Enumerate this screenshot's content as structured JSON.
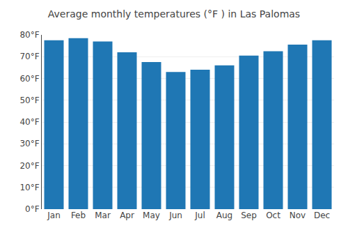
{
  "chart_data": {
    "type": "bar",
    "title": "Average monthly temperatures (°F ) in Las Palomas",
    "categories": [
      "Jan",
      "Feb",
      "Mar",
      "Apr",
      "May",
      "Jun",
      "Jul",
      "Aug",
      "Sep",
      "Oct",
      "Nov",
      "Dec"
    ],
    "values": [
      77.5,
      78.5,
      77.0,
      72.0,
      67.5,
      63.0,
      64.0,
      66.0,
      70.5,
      72.5,
      75.5,
      77.5
    ],
    "ylim": [
      0,
      80
    ],
    "yticks": [
      {
        "value": 0,
        "label": "0°F"
      },
      {
        "value": 10,
        "label": "10°F"
      },
      {
        "value": 20,
        "label": "20°F"
      },
      {
        "value": 30,
        "label": "30°F"
      },
      {
        "value": 40,
        "label": "40°F"
      },
      {
        "value": 50,
        "label": "50°F"
      },
      {
        "value": 60,
        "label": "60°F"
      },
      {
        "value": 70,
        "label": "70°F"
      },
      {
        "value": 80,
        "label": "80°F"
      }
    ],
    "grid": true
  }
}
